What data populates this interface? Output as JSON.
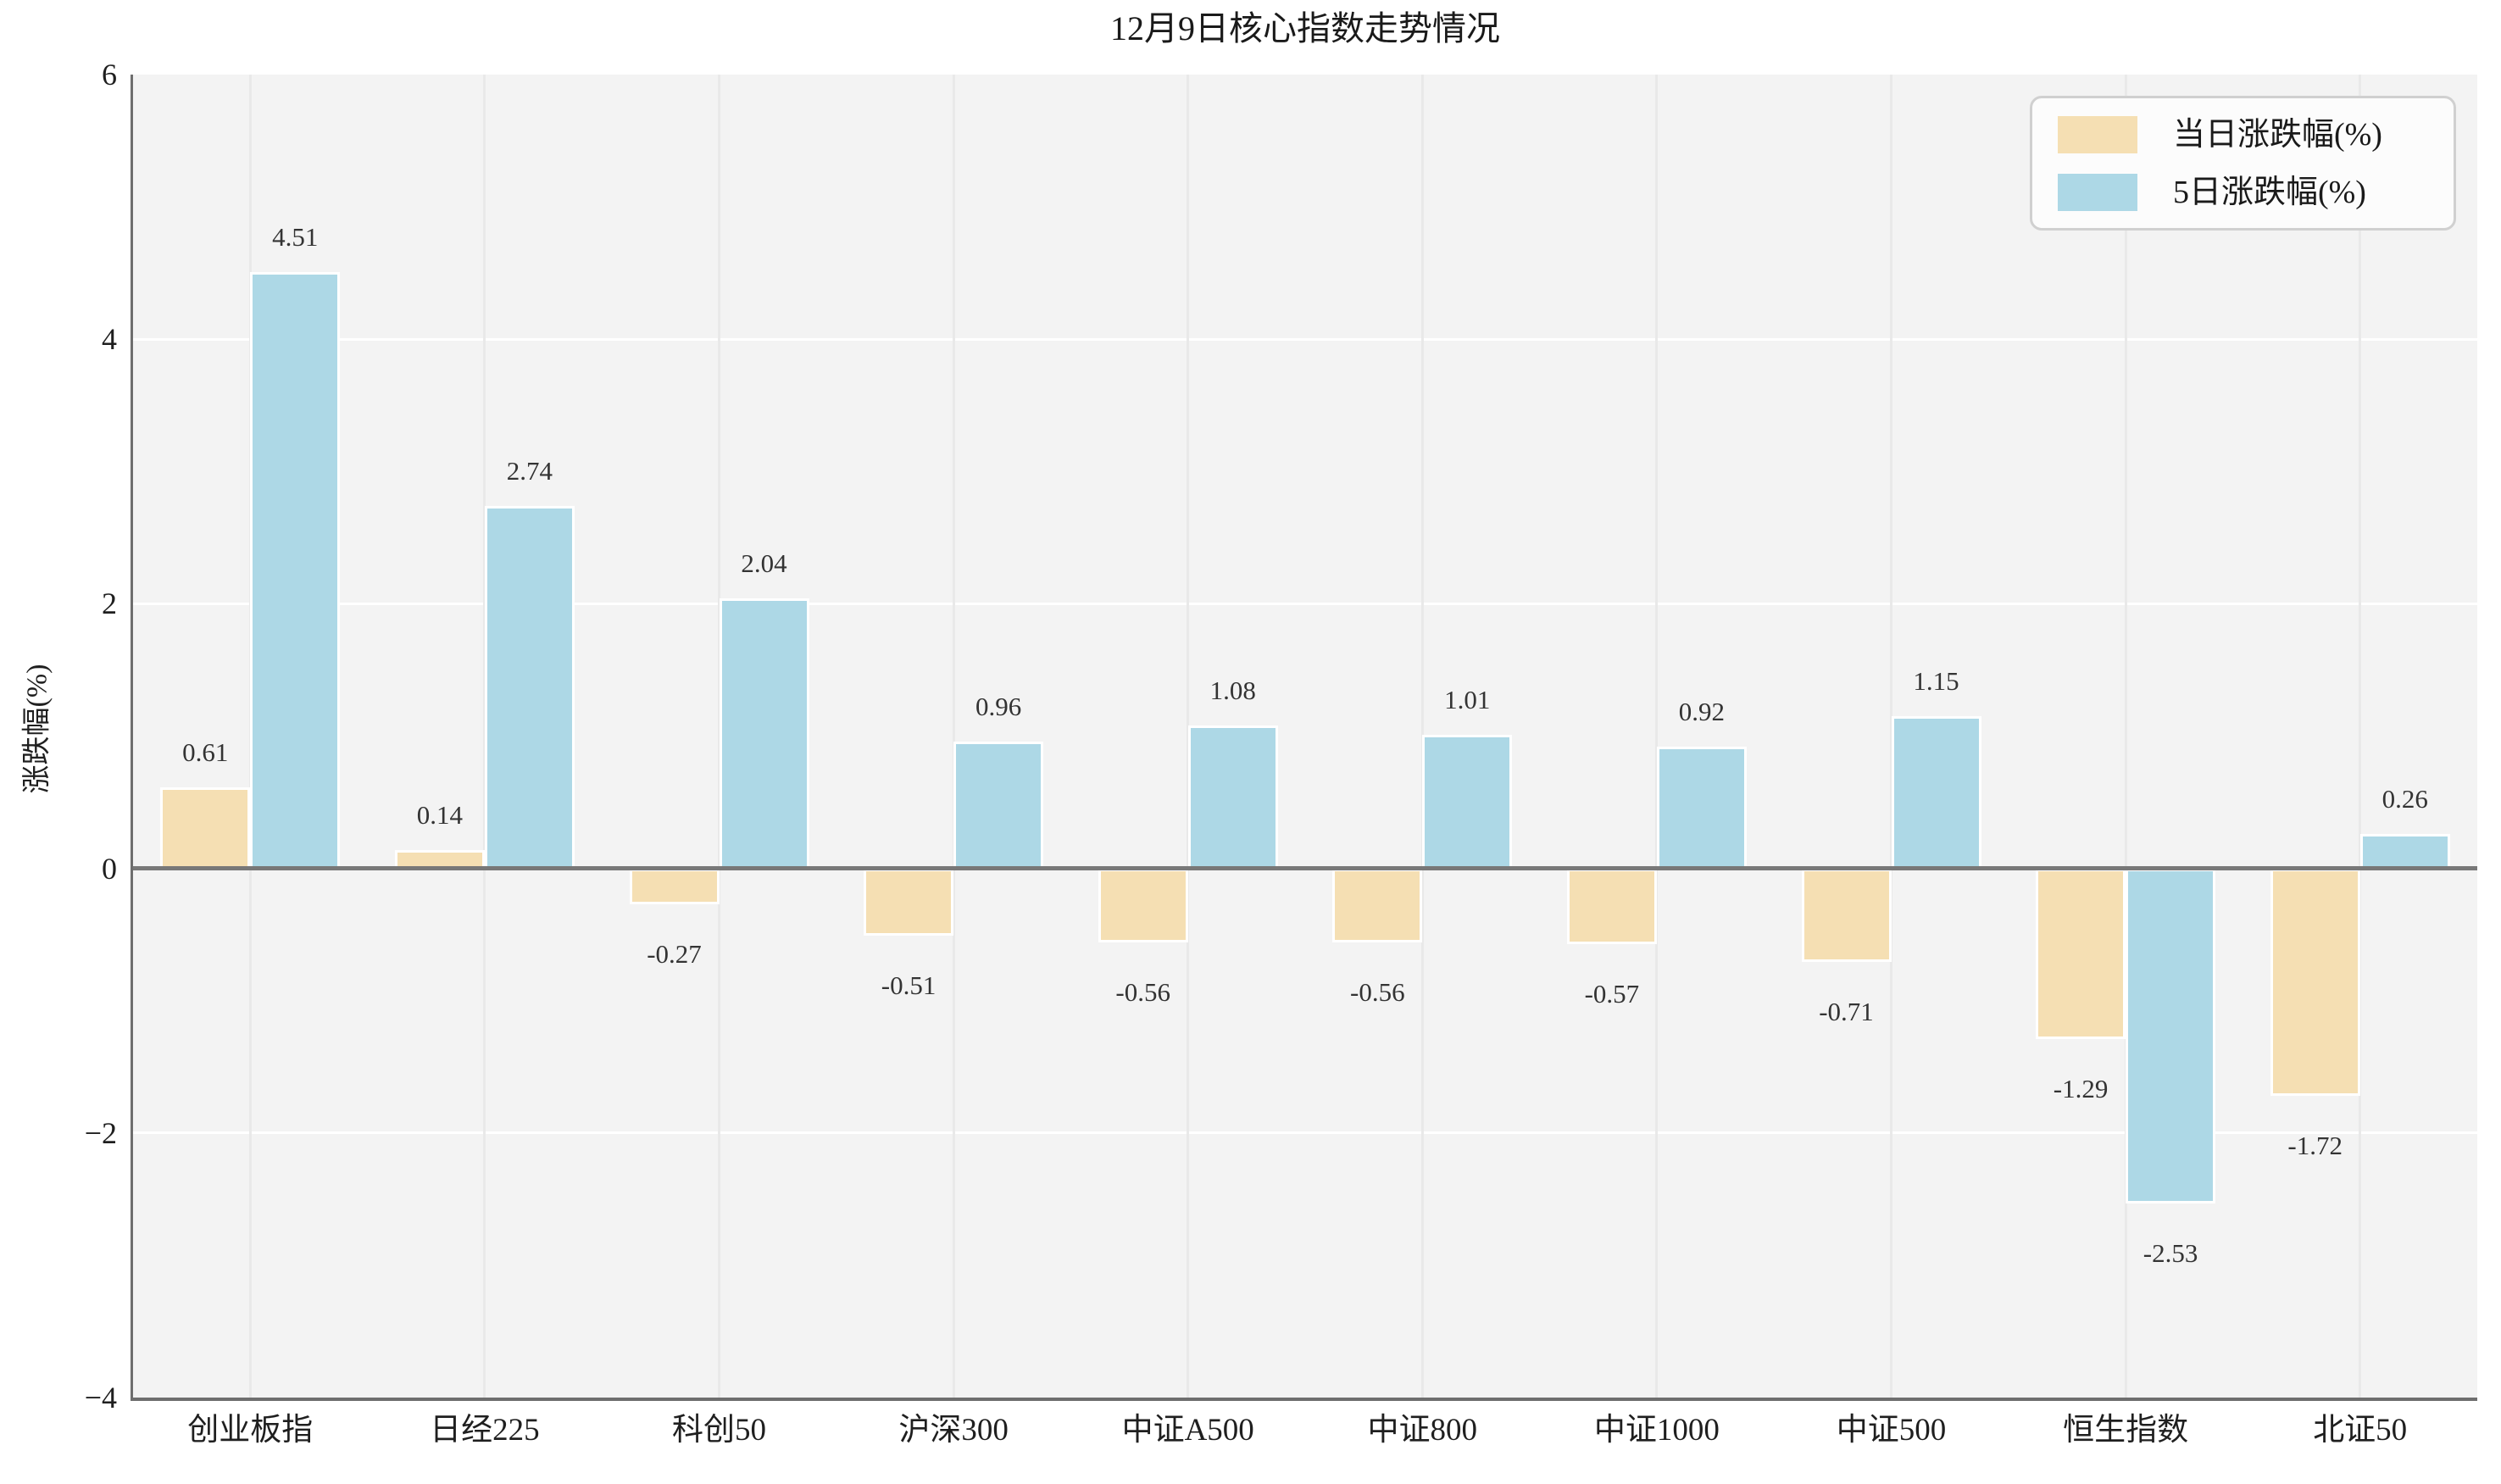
{
  "title": "12月9日核心指数走势情况",
  "chart_data": {
    "type": "bar",
    "title": "12月9日核心指数走势情况",
    "categories": [
      "创业板指",
      "日经225",
      "科创50",
      "沪深300",
      "中证A500",
      "中证800",
      "中证1000",
      "中证500",
      "恒生指数",
      "北证50"
    ],
    "series": [
      {
        "name": "当日涨跌幅(%)",
        "color": "#f5dfb3",
        "values": [
          0.61,
          0.14,
          -0.27,
          -0.51,
          -0.56,
          -0.56,
          -0.57,
          -0.71,
          -1.29,
          -1.72
        ]
      },
      {
        "name": "5日涨跌幅(%)",
        "color": "#add8e6",
        "values": [
          4.51,
          2.74,
          2.04,
          0.96,
          1.08,
          1.01,
          0.92,
          1.15,
          -2.53,
          0.26
        ]
      }
    ],
    "xlabel": "",
    "ylabel": "涨跌幅(%)",
    "ylim": [
      -4,
      6
    ],
    "yticks": [
      {
        "value": 6,
        "label": "6"
      },
      {
        "value": 4,
        "label": "4"
      },
      {
        "value": 2,
        "label": "2"
      },
      {
        "value": 0,
        "label": "0"
      },
      {
        "value": -2,
        "label": "−2"
      },
      {
        "value": -4,
        "label": "−4"
      }
    ],
    "grid": true,
    "legend_position": "top-right"
  },
  "colors": {
    "plot_background": "#f3f3f3",
    "horizontal_grid": "#ffffff",
    "vertical_grid": "#e9e9e9",
    "bar_edge": "#ffffff",
    "zero_line": "#787878",
    "spine": "#6e6e6e",
    "series_today": "#f5dfb3",
    "series_5day": "#add8e6"
  }
}
